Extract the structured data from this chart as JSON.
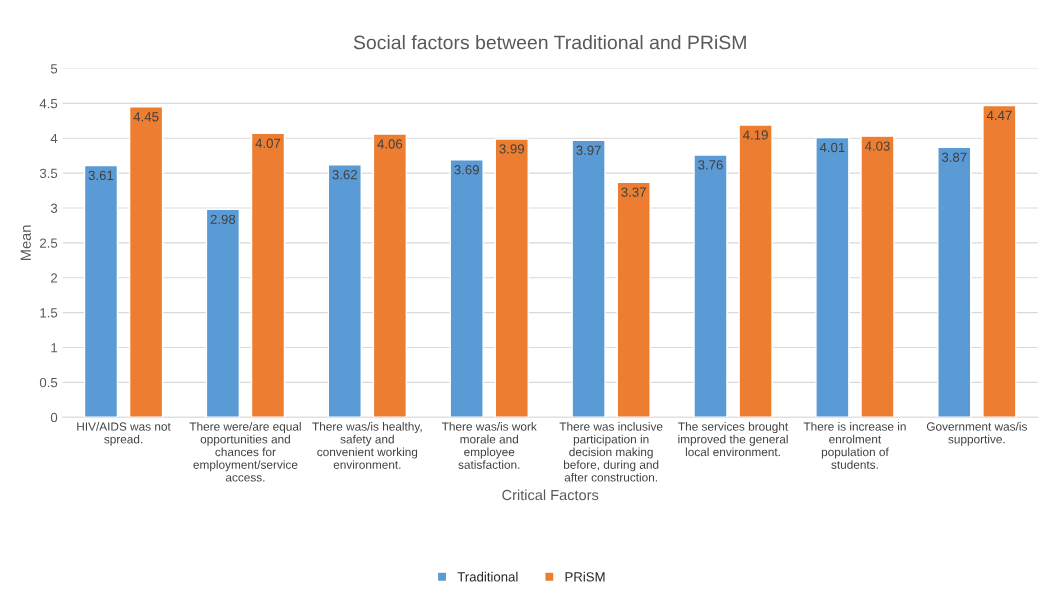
{
  "chart_data": {
    "type": "bar",
    "title": "Social factors between Traditional and PRiSM",
    "xlabel": "Critical Factors",
    "ylabel": "Mean",
    "categories": [
      "HIV/AIDS was not\nspread.",
      "There were/are equal\nopportunities and\nchances for\nemployment/service\naccess.",
      "There was/is healthy,\nsafety and\nconvenient working\nenvironment.",
      "There was/is work\nmorale and\nemployee\nsatisfaction.",
      "There was inclusive\nparticipation in\ndecision making\nbefore, during and\nafter construction.",
      "The services brought\nimproved the general\nlocal environment.",
      "There is increase in\nenrolment\npopulation of\nstudents.",
      "Government was/is\nsupportive."
    ],
    "series": [
      {
        "name": "Traditional",
        "color": "#5b9bd5",
        "values": [
          3.61,
          2.98,
          3.62,
          3.69,
          3.97,
          3.76,
          4.01,
          3.87
        ]
      },
      {
        "name": "PRiSM",
        "color": "#ed7d31",
        "values": [
          4.45,
          4.07,
          4.06,
          3.99,
          3.37,
          4.19,
          4.03,
          4.47
        ]
      }
    ],
    "ylim": [
      0,
      5
    ],
    "yticks": [
      0,
      0.5,
      1,
      1.5,
      2,
      2.5,
      3,
      3.5,
      4,
      4.5,
      5
    ],
    "grid": "y",
    "legend": "bottom",
    "data_labels": true
  }
}
